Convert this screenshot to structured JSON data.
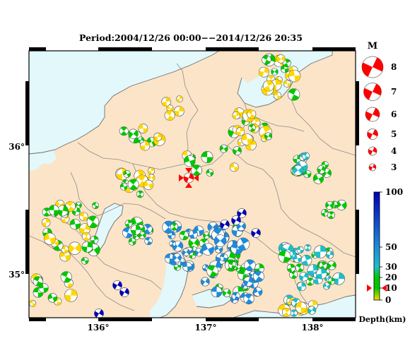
{
  "title": "Period:2004/12/26 00:00−−2014/12/26 20:35",
  "map": {
    "lon_range": [
      135.35,
      138.4
    ],
    "lat_range": [
      34.8,
      36.6
    ],
    "x_ticks": [
      "136°",
      "137°",
      "138°"
    ],
    "y_ticks": [
      "36°",
      "35°"
    ],
    "colors": {
      "land": "#fbe4c8",
      "sea": "#e2f8fa",
      "border": "#8c8c8c",
      "frame": "#000000"
    }
  },
  "magnitude_legend": {
    "title": "M",
    "entries": [
      "8",
      "7",
      "6",
      "5",
      "4",
      "3"
    ],
    "color": "#ff0000"
  },
  "depth_scale": {
    "labels": [
      "100",
      "50",
      "30",
      "20",
      "10",
      "0"
    ],
    "unit_label": "Depth(km)",
    "colors": {
      "shallow": "#ffd700",
      "mid": "#00c800",
      "mid2": "#1ebec8",
      "deep": "#1e8cdc",
      "deepest": "#0000b4"
    },
    "marker_depth": 10
  }
}
